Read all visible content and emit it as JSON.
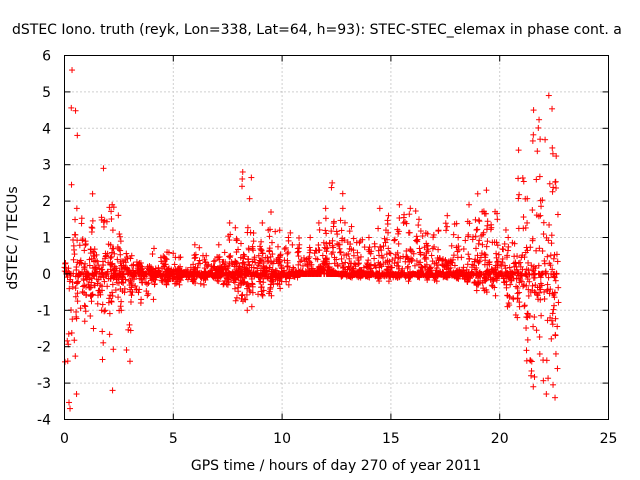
{
  "chart_data": {
    "type": "scatter",
    "title": "dSTEC Iono. truth (reyk, Lon=338, Lat=64, h=93): STEC-STEC_elemax in phase cont. a",
    "xlabel": "GPS time / hours of day 270 of year 2011",
    "ylabel": "dSTEC  / TECUs",
    "xlim": [
      0,
      25
    ],
    "ylim": [
      -4,
      6
    ],
    "xticks": [
      0,
      5,
      10,
      15,
      20,
      25
    ],
    "yticks": [
      -4,
      -3,
      -2,
      -1,
      0,
      1,
      2,
      3,
      4,
      5,
      6
    ],
    "xtick_labels": [
      "0",
      "5",
      "10",
      "15",
      "20",
      "25"
    ],
    "ytick_labels": [
      "-4",
      "-3",
      "-2",
      "-1",
      "0",
      "1",
      "2",
      "3",
      "4",
      "5",
      "6"
    ],
    "grid": true,
    "marker": "+",
    "color": "#ff0000",
    "series": [
      {
        "name": "dSTEC",
        "arcs": [
          {
            "start": 0.0,
            "end": 0.3,
            "min": -3.7,
            "max": 0.3
          },
          {
            "start": 0.3,
            "end": 0.6,
            "min": -3.3,
            "max": 5.6
          },
          {
            "start": 0.5,
            "end": 1.0,
            "min": -1.3,
            "max": 1.8
          },
          {
            "start": 0.9,
            "end": 1.4,
            "min": -1.5,
            "max": 0.9
          },
          {
            "start": 1.2,
            "end": 1.8,
            "min": -1.0,
            "max": 2.2
          },
          {
            "start": 1.7,
            "end": 2.3,
            "min": -3.2,
            "max": 2.9
          },
          {
            "start": 2.1,
            "end": 2.7,
            "min": -1.0,
            "max": 1.9
          },
          {
            "start": 2.5,
            "end": 3.1,
            "min": -2.4,
            "max": 0.9
          },
          {
            "start": 3.0,
            "end": 3.6,
            "min": -0.8,
            "max": 0.5
          },
          {
            "start": 3.4,
            "end": 4.2,
            "min": -0.7,
            "max": 0.3
          },
          {
            "start": 4.0,
            "end": 4.8,
            "min": -0.3,
            "max": 0.7
          },
          {
            "start": 4.6,
            "end": 5.4,
            "min": -0.3,
            "max": 0.6
          },
          {
            "start": 5.2,
            "end": 6.0,
            "min": -0.2,
            "max": 0.2
          },
          {
            "start": 5.9,
            "end": 6.5,
            "min": -0.3,
            "max": 0.8
          },
          {
            "start": 6.4,
            "end": 7.2,
            "min": -0.2,
            "max": 0.5
          },
          {
            "start": 7.0,
            "end": 7.6,
            "min": -0.3,
            "max": 0.8
          },
          {
            "start": 7.5,
            "end": 8.1,
            "min": -0.3,
            "max": 1.4
          },
          {
            "start": 7.8,
            "end": 8.5,
            "min": -1.0,
            "max": 0.6
          },
          {
            "start": 8.1,
            "end": 8.7,
            "min": -0.9,
            "max": 2.8
          },
          {
            "start": 8.6,
            "end": 9.2,
            "min": -0.6,
            "max": 0.9
          },
          {
            "start": 9.0,
            "end": 9.6,
            "min": -0.6,
            "max": 1.4
          },
          {
            "start": 9.4,
            "end": 10.0,
            "min": -0.4,
            "max": 1.7
          },
          {
            "start": 9.8,
            "end": 10.4,
            "min": -0.3,
            "max": 1.2
          },
          {
            "start": 10.2,
            "end": 10.8,
            "min": -0.1,
            "max": 1.0
          },
          {
            "start": 10.7,
            "end": 11.3,
            "min": 0.0,
            "max": 0.8
          },
          {
            "start": 11.2,
            "end": 11.8,
            "min": 0.0,
            "max": 1.0
          },
          {
            "start": 11.6,
            "end": 12.2,
            "min": 0.1,
            "max": 1.4
          },
          {
            "start": 11.9,
            "end": 12.6,
            "min": 0.0,
            "max": 1.8
          },
          {
            "start": 12.2,
            "end": 12.9,
            "min": 0.0,
            "max": 2.5
          },
          {
            "start": 12.7,
            "end": 13.3,
            "min": -0.1,
            "max": 1.8
          },
          {
            "start": 13.1,
            "end": 13.7,
            "min": -0.1,
            "max": 1.3
          },
          {
            "start": 13.5,
            "end": 14.1,
            "min": -0.1,
            "max": 0.9
          },
          {
            "start": 13.9,
            "end": 14.5,
            "min": -0.1,
            "max": 1.0
          },
          {
            "start": 14.4,
            "end": 15.0,
            "min": -0.2,
            "max": 1.8
          },
          {
            "start": 14.8,
            "end": 15.4,
            "min": -0.1,
            "max": 1.6
          },
          {
            "start": 15.3,
            "end": 15.9,
            "min": -0.2,
            "max": 1.9
          },
          {
            "start": 15.8,
            "end": 16.4,
            "min": -0.1,
            "max": 1.8
          },
          {
            "start": 16.2,
            "end": 16.8,
            "min": -0.1,
            "max": 1.5
          },
          {
            "start": 16.6,
            "end": 17.2,
            "min": -0.2,
            "max": 1.1
          },
          {
            "start": 17.1,
            "end": 17.7,
            "min": -0.1,
            "max": 1.2
          },
          {
            "start": 17.5,
            "end": 18.1,
            "min": -0.1,
            "max": 1.6
          },
          {
            "start": 18.0,
            "end": 18.6,
            "min": -0.2,
            "max": 1.0
          },
          {
            "start": 18.5,
            "end": 19.1,
            "min": -0.3,
            "max": 1.9
          },
          {
            "start": 18.9,
            "end": 19.5,
            "min": -0.5,
            "max": 2.2
          },
          {
            "start": 19.3,
            "end": 19.9,
            "min": -0.6,
            "max": 2.3
          },
          {
            "start": 19.8,
            "end": 20.4,
            "min": -0.3,
            "max": 1.5
          },
          {
            "start": 20.3,
            "end": 20.9,
            "min": -1.2,
            "max": 1.0
          },
          {
            "start": 20.8,
            "end": 21.3,
            "min": -2.1,
            "max": 3.4
          },
          {
            "start": 21.2,
            "end": 21.6,
            "min": -3.1,
            "max": 1.4
          },
          {
            "start": 21.5,
            "end": 21.9,
            "min": -2.2,
            "max": 4.5
          },
          {
            "start": 21.8,
            "end": 22.2,
            "min": -3.3,
            "max": 3.7
          },
          {
            "start": 22.2,
            "end": 22.6,
            "min": -3.4,
            "max": 4.9
          },
          {
            "start": 22.4,
            "end": 22.7,
            "min": -2.6,
            "max": 3.3
          }
        ]
      }
    ]
  }
}
